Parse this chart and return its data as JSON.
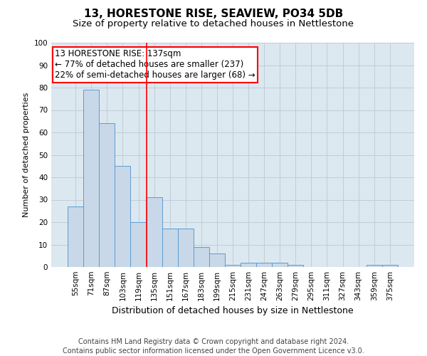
{
  "title": "13, HORESTONE RISE, SEAVIEW, PO34 5DB",
  "subtitle": "Size of property relative to detached houses in Nettlestone",
  "xlabel": "Distribution of detached houses by size in Nettlestone",
  "ylabel": "Number of detached properties",
  "categories": [
    "55sqm",
    "71sqm",
    "87sqm",
    "103sqm",
    "119sqm",
    "135sqm",
    "151sqm",
    "167sqm",
    "183sqm",
    "199sqm",
    "215sqm",
    "231sqm",
    "247sqm",
    "263sqm",
    "279sqm",
    "295sqm",
    "311sqm",
    "327sqm",
    "343sqm",
    "359sqm",
    "375sqm"
  ],
  "values": [
    27,
    79,
    64,
    45,
    20,
    31,
    17,
    17,
    9,
    6,
    1,
    2,
    2,
    2,
    1,
    0,
    0,
    0,
    0,
    1,
    1
  ],
  "bar_color": "#c8d8e8",
  "bar_edge_color": "#5b9bd5",
  "vline_idx": 5,
  "vline_color": "red",
  "annotation_line1": "13 HORESTONE RISE: 137sqm",
  "annotation_line2": "← 77% of detached houses are smaller (237)",
  "annotation_line3": "22% of semi-detached houses are larger (68) →",
  "annotation_box_color": "red",
  "ylim": [
    0,
    100
  ],
  "yticks": [
    0,
    10,
    20,
    30,
    40,
    50,
    60,
    70,
    80,
    90,
    100
  ],
  "grid_color": "#c0ccd8",
  "background_color": "#dce8f0",
  "footer1": "Contains HM Land Registry data © Crown copyright and database right 2024.",
  "footer2": "Contains public sector information licensed under the Open Government Licence v3.0.",
  "title_fontsize": 11,
  "subtitle_fontsize": 9.5,
  "xlabel_fontsize": 9,
  "ylabel_fontsize": 8,
  "tick_fontsize": 7.5,
  "annotation_fontsize": 8.5,
  "footer_fontsize": 7
}
